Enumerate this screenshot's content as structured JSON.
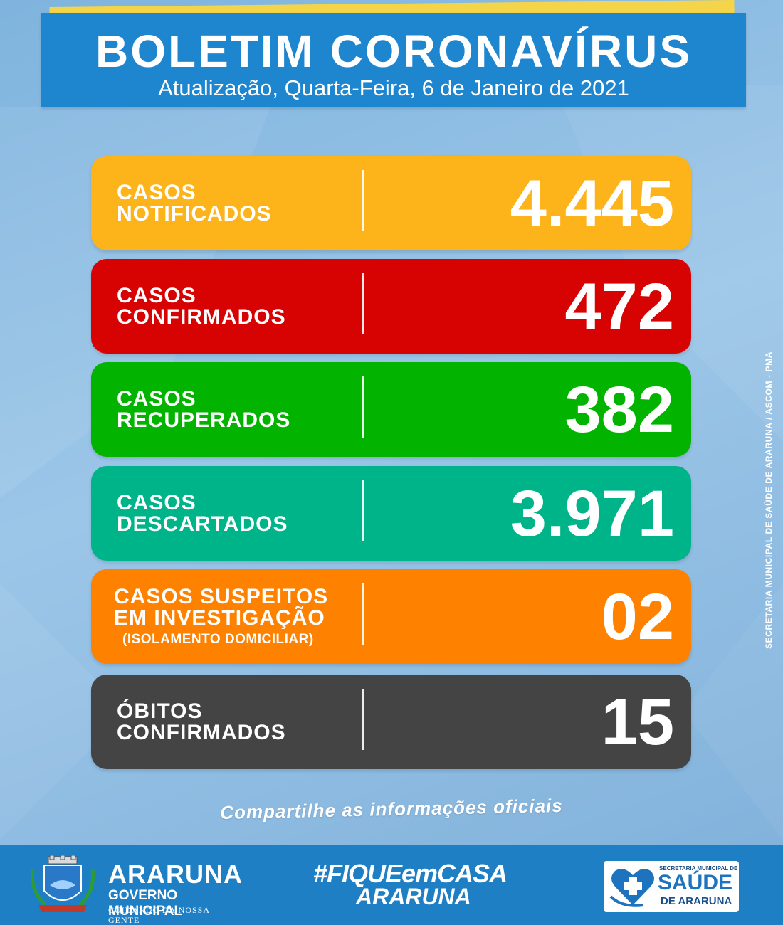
{
  "header": {
    "title": "BOLETIM CORONAVÍRUS",
    "subtitle": "Atualização, Quarta-Feira, 6 de Janeiro de 2021"
  },
  "cards": [
    {
      "label_line1": "CASOS",
      "label_line2": "NOTIFICADOS",
      "value": "4.445",
      "color": "#fdb31a"
    },
    {
      "label_line1": "CASOS",
      "label_line2": "CONFIRMADOS",
      "value": "472",
      "color": "#d70303"
    },
    {
      "label_line1": "CASOS",
      "label_line2": "RECUPERADOS",
      "value": "382",
      "color": "#02b400"
    },
    {
      "label_line1": "CASOS",
      "label_line2": "DESCARTADOS",
      "value": "3.971",
      "color": "#00b489"
    },
    {
      "label_line1": "CASOS SUSPEITOS",
      "label_line2": "EM INVESTIGAÇÃO",
      "label_line3": "(ISOLAMENTO DOMICILIAR)",
      "value": "02",
      "color": "#fe8100"
    },
    {
      "label_line1": "ÓBITOS",
      "label_line2": "CONFIRMADOS",
      "value": "15",
      "color": "#444444"
    }
  ],
  "side_credit": "SECRETARIA MUNICIPAL DE SAÚDE DE ARARUNA / ASCOM - PMA",
  "share_text": "Compartilhe as informações oficiais",
  "footer": {
    "brand_name": "ARARUNA",
    "brand_sub": "GOVERNO MUNICIPAL",
    "brand_tag": "CUIDANDO DA NOSSA GENTE",
    "hashtag_line1": "#FIQUEemCASA",
    "hashtag_line2": "ARARUNA",
    "secretaria_top": "SECRETARIA MUNICIPAL DE",
    "secretaria_main": "SAÚDE",
    "secretaria_bottom": "DE ARARUNA",
    "colors": {
      "footer_bg": "#1f7fc4",
      "header_bg": "#1e86cf",
      "header_accent": "#f4d54a"
    }
  }
}
